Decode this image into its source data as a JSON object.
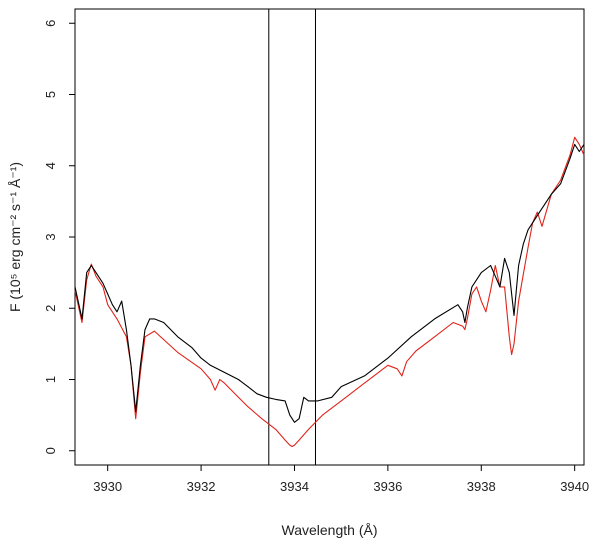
{
  "chart_data": {
    "type": "line",
    "title": "",
    "xlabel": "Wavelength (Å)",
    "ylabel": "F (10⁵ erg cm⁻² s⁻¹ Å⁻¹)",
    "xlim": [
      3929.3,
      3940.2
    ],
    "ylim": [
      -0.2,
      6.2
    ],
    "xticks": [
      3930,
      3932,
      3934,
      3936,
      3938,
      3940
    ],
    "yticks": [
      0,
      1,
      2,
      3,
      4,
      5,
      6
    ],
    "grid": false,
    "vlines": [
      3933.45,
      3934.45
    ],
    "series": [
      {
        "color": "#000000",
        "x": [
          3929.3,
          3929.45,
          3929.55,
          3929.65,
          3929.75,
          3929.9,
          3930.0,
          3930.1,
          3930.2,
          3930.3,
          3930.4,
          3930.5,
          3930.6,
          3930.7,
          3930.8,
          3930.9,
          3931.0,
          3931.2,
          3931.5,
          3931.8,
          3932.0,
          3932.2,
          3932.5,
          3932.8,
          3933.0,
          3933.2,
          3933.4,
          3933.6,
          3933.8,
          3933.9,
          3934.0,
          3934.1,
          3934.2,
          3934.3,
          3934.5,
          3934.8,
          3935.0,
          3935.5,
          3936.0,
          3936.5,
          3937.0,
          3937.5,
          3937.6,
          3937.65,
          3937.7,
          3937.8,
          3938.0,
          3938.2,
          3938.3,
          3938.4,
          3938.5,
          3938.6,
          3938.7,
          3938.8,
          3938.9,
          3939.0,
          3939.2,
          3939.5,
          3939.7,
          3939.9,
          3940.0,
          3940.1,
          3940.2
        ],
        "values": [
          2.3,
          1.85,
          2.5,
          2.6,
          2.5,
          2.35,
          2.2,
          2.05,
          1.95,
          2.1,
          1.7,
          1.2,
          0.55,
          1.2,
          1.7,
          1.85,
          1.85,
          1.8,
          1.6,
          1.45,
          1.3,
          1.2,
          1.1,
          1.0,
          0.9,
          0.8,
          0.75,
          0.72,
          0.7,
          0.5,
          0.4,
          0.45,
          0.75,
          0.7,
          0.7,
          0.75,
          0.9,
          1.05,
          1.3,
          1.6,
          1.85,
          2.05,
          1.95,
          1.8,
          2.0,
          2.3,
          2.5,
          2.6,
          2.45,
          2.3,
          2.7,
          2.5,
          1.9,
          2.6,
          2.9,
          3.1,
          3.3,
          3.6,
          3.75,
          4.1,
          4.3,
          4.2,
          4.3
        ]
      },
      {
        "color": "#e0241b",
        "x": [
          3929.3,
          3929.45,
          3929.55,
          3929.65,
          3929.75,
          3929.9,
          3930.0,
          3930.2,
          3930.4,
          3930.5,
          3930.6,
          3930.7,
          3930.8,
          3931.0,
          3931.5,
          3932.0,
          3932.2,
          3932.3,
          3932.4,
          3932.5,
          3932.8,
          3933.0,
          3933.3,
          3933.6,
          3933.8,
          3933.9,
          3933.95,
          3934.0,
          3934.1,
          3934.3,
          3934.6,
          3935.0,
          3935.5,
          3936.0,
          3936.2,
          3936.3,
          3936.4,
          3936.6,
          3937.0,
          3937.4,
          3937.6,
          3937.65,
          3937.7,
          3937.8,
          3937.9,
          3938.0,
          3938.1,
          3938.2,
          3938.3,
          3938.4,
          3938.5,
          3938.6,
          3938.65,
          3938.7,
          3938.8,
          3939.0,
          3939.1,
          3939.2,
          3939.3,
          3939.5,
          3939.7,
          3939.9,
          3940.0,
          3940.1,
          3940.2
        ],
        "values": [
          2.25,
          1.8,
          2.4,
          2.62,
          2.45,
          2.3,
          2.05,
          1.85,
          1.6,
          1.2,
          0.45,
          1.1,
          1.6,
          1.68,
          1.38,
          1.15,
          1.0,
          0.85,
          1.0,
          0.95,
          0.75,
          0.62,
          0.45,
          0.3,
          0.15,
          0.08,
          0.06,
          0.08,
          0.15,
          0.3,
          0.5,
          0.7,
          0.95,
          1.2,
          1.15,
          1.05,
          1.25,
          1.4,
          1.6,
          1.8,
          1.75,
          1.7,
          1.85,
          2.2,
          2.3,
          2.1,
          1.95,
          2.25,
          2.6,
          2.3,
          2.3,
          1.6,
          1.35,
          1.5,
          2.1,
          2.85,
          3.2,
          3.35,
          3.15,
          3.6,
          3.8,
          4.15,
          4.4,
          4.3,
          4.15
        ]
      }
    ]
  }
}
